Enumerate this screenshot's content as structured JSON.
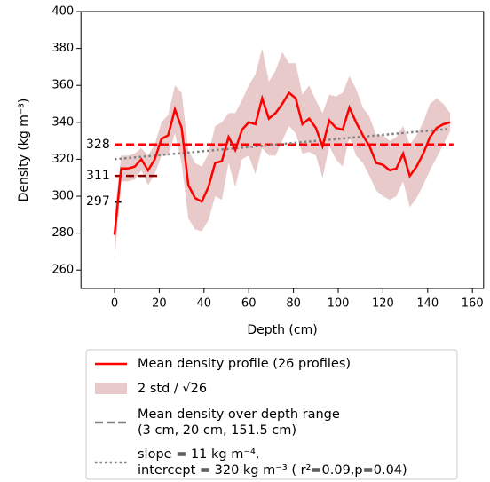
{
  "chart_data": {
    "type": "line",
    "xlabel": "Depth (cm)",
    "ylabel": "Density (kg m⁻³)",
    "xlim": [
      -15,
      165
    ],
    "ylim": [
      250,
      400
    ],
    "xticks": [
      0,
      20,
      40,
      60,
      80,
      100,
      120,
      140,
      160
    ],
    "yticks": [
      260,
      280,
      300,
      320,
      340,
      360,
      380,
      400
    ],
    "x": [
      0,
      3,
      6,
      9,
      12,
      15,
      18,
      21,
      24,
      27,
      30,
      33,
      36,
      39,
      42,
      45,
      48,
      51,
      54,
      57,
      60,
      63,
      66,
      69,
      72,
      75,
      78,
      81,
      84,
      87,
      90,
      93,
      96,
      99,
      102,
      105,
      108,
      111,
      114,
      117,
      120,
      123,
      126,
      129,
      132,
      135,
      138,
      141,
      144,
      147,
      150
    ],
    "band": {
      "name": "2 std / √26",
      "color": "#dcaeae",
      "upper": [
        290,
        322,
        322,
        323,
        326,
        322,
        328,
        340,
        344,
        360,
        356,
        325,
        318,
        316,
        323,
        338,
        340,
        345,
        345,
        352,
        360,
        366,
        380,
        362,
        368,
        378,
        372,
        372,
        355,
        360,
        352,
        345,
        355,
        354,
        356,
        365,
        358,
        348,
        343,
        333,
        333,
        330,
        332,
        338,
        328,
        333,
        340,
        350,
        353,
        350,
        345
      ],
      "lower": [
        265,
        308,
        308,
        309,
        314,
        306,
        312,
        322,
        322,
        334,
        318,
        288,
        282,
        281,
        287,
        300,
        298,
        318,
        305,
        320,
        322,
        312,
        326,
        322,
        322,
        330,
        338,
        334,
        323,
        324,
        322,
        310,
        327,
        320,
        316,
        332,
        322,
        318,
        311,
        303,
        300,
        298,
        300,
        308,
        294,
        299,
        306,
        314,
        321,
        328,
        335
      ]
    },
    "series": [
      {
        "name": "Mean density profile (26 profiles)",
        "color": "#ff0000",
        "values": [
          279,
          315,
          315,
          316,
          320,
          314,
          320,
          331,
          333,
          347,
          337,
          306,
          299,
          297,
          305,
          318,
          319,
          332,
          325,
          336,
          340,
          339,
          353,
          342,
          345,
          350,
          356,
          353,
          339,
          342,
          337,
          327,
          341,
          337,
          336,
          348,
          340,
          333,
          327,
          318,
          317,
          314,
          315,
          323,
          311,
          316,
          323,
          332,
          337,
          339,
          340
        ]
      }
    ],
    "hlines": [
      {
        "value": 328,
        "color": "#ff0000",
        "xrange": [
          0,
          151.5
        ]
      },
      {
        "value": 311,
        "color": "#8b0000",
        "xrange": [
          0,
          20
        ]
      },
      {
        "value": 297,
        "color": "#000000",
        "xrange": [
          0,
          3
        ]
      }
    ],
    "hline_legend": [
      "Mean density over depth range",
      "(3 cm, 20 cm, 151.5 cm)"
    ],
    "hline_legend_color": "#808080",
    "trend": {
      "color": "#808080",
      "x": [
        0,
        150
      ],
      "values": [
        320,
        336.5
      ],
      "legend": [
        "slope = 11 kg m⁻⁴,",
        "intercept = 320 kg m⁻³ ( r²=0.09,p=0.04)"
      ]
    }
  }
}
